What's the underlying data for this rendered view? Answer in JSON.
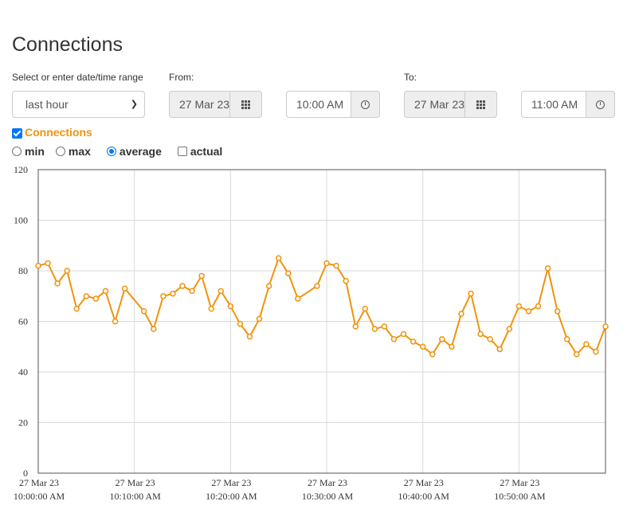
{
  "page": {
    "title": "Connections"
  },
  "range": {
    "label": "Select or enter date/time range",
    "selected": "last hour"
  },
  "from": {
    "label": "From:",
    "date": "27 Mar 23",
    "time": "10:00 AM"
  },
  "to": {
    "label": "To:",
    "date": "27 Mar 23",
    "time": "11:00 AM"
  },
  "series_toggle": {
    "label": "Connections",
    "checked": true,
    "color": "#f0930b"
  },
  "stat_options": [
    {
      "label": "min",
      "type": "radio",
      "checked": false
    },
    {
      "label": "max",
      "type": "radio",
      "checked": false
    },
    {
      "label": "average",
      "type": "radio",
      "checked": true
    },
    {
      "label": "actual",
      "type": "checkbox",
      "checked": false
    }
  ],
  "icons": {
    "calendar": "calendar-grid-icon",
    "clock": "clock-icon"
  },
  "chart_data": {
    "type": "line",
    "ylim": [
      0,
      120
    ],
    "yticks": [
      0,
      20,
      40,
      60,
      80,
      100,
      120
    ],
    "xlim_minutes": [
      0,
      59
    ],
    "xticks": [
      {
        "minute": 0,
        "date": "27 Mar 23",
        "time": "10:00:00 AM"
      },
      {
        "minute": 10,
        "date": "27 Mar 23",
        "time": "10:10:00 AM"
      },
      {
        "minute": 20,
        "date": "27 Mar 23",
        "time": "10:20:00 AM"
      },
      {
        "minute": 30,
        "date": "27 Mar 23",
        "time": "10:30:00 AM"
      },
      {
        "minute": 40,
        "date": "27 Mar 23",
        "time": "10:40:00 AM"
      },
      {
        "minute": 50,
        "date": "27 Mar 23",
        "time": "10:50:00 AM"
      }
    ],
    "grid": true,
    "series": [
      {
        "color": "#f0930b",
        "points": [
          [
            0.0,
            82
          ],
          [
            1.0,
            83
          ],
          [
            2.0,
            75
          ],
          [
            3.0,
            80
          ],
          [
            4.0,
            65
          ],
          [
            5.0,
            70
          ],
          [
            6.0,
            69
          ],
          [
            7.0,
            72
          ],
          [
            8.0,
            60
          ],
          [
            9.0,
            73
          ],
          [
            11.0,
            64
          ],
          [
            12.0,
            57
          ],
          [
            13.0,
            70
          ],
          [
            14.0,
            71
          ],
          [
            15.0,
            74
          ],
          [
            16.0,
            72
          ],
          [
            17.0,
            78
          ],
          [
            18.0,
            65
          ],
          [
            19.0,
            72
          ],
          [
            20.0,
            66
          ],
          [
            21.0,
            59
          ],
          [
            22.0,
            54
          ],
          [
            23.0,
            61
          ],
          [
            24.0,
            74
          ],
          [
            25.0,
            85
          ],
          [
            26.0,
            79
          ],
          [
            27.0,
            69
          ],
          [
            29.0,
            74
          ],
          [
            30.0,
            83
          ],
          [
            31.0,
            82
          ],
          [
            32.0,
            76
          ],
          [
            33.0,
            58
          ],
          [
            34.0,
            65
          ],
          [
            35.0,
            57
          ],
          [
            36.0,
            58
          ],
          [
            37.0,
            53
          ],
          [
            38.0,
            55
          ],
          [
            39.0,
            52
          ],
          [
            40.0,
            50
          ],
          [
            41.0,
            47
          ],
          [
            42.0,
            53
          ],
          [
            43.0,
            50
          ],
          [
            44.0,
            63
          ],
          [
            45.0,
            71
          ],
          [
            46.0,
            55
          ],
          [
            47.0,
            53
          ],
          [
            48.0,
            49
          ],
          [
            49.0,
            57
          ],
          [
            50.0,
            66
          ],
          [
            51.0,
            64
          ],
          [
            52.0,
            66
          ],
          [
            53.0,
            81
          ],
          [
            54.0,
            64
          ],
          [
            55.0,
            53
          ],
          [
            56.0,
            47
          ],
          [
            57.0,
            51
          ],
          [
            58.0,
            48
          ],
          [
            59.0,
            58
          ]
        ]
      }
    ]
  }
}
